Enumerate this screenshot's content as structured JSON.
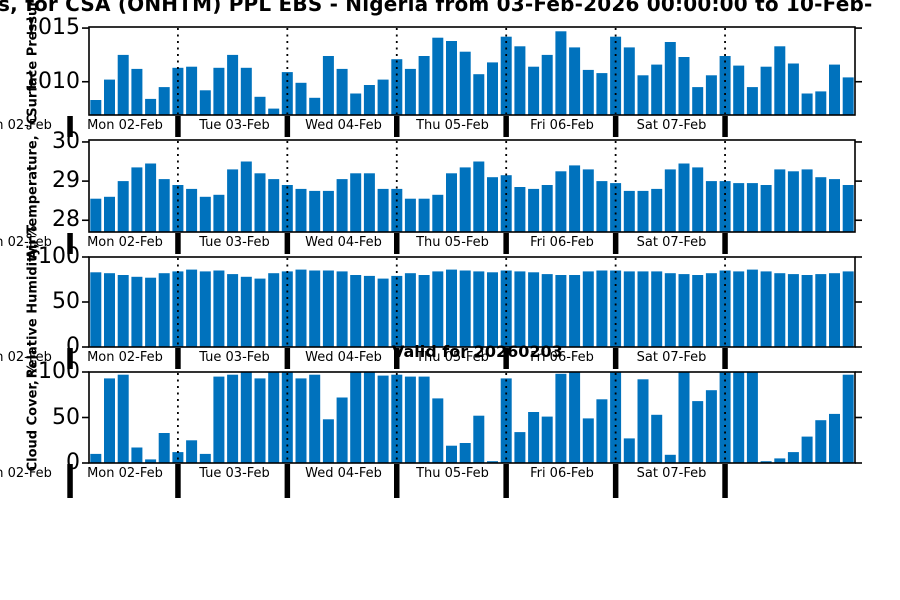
{
  "title": "s, for CSA (ONHTM) PPL EBS  - Nigeria from 03-Feb-2026 00:00:00 to 10-Feb-",
  "annotation": "Valid for 20260203",
  "colors": {
    "bar": "#0072BD",
    "axis": "#000000"
  },
  "x_axis": {
    "day_labels": [
      "Mon 02-Feb",
      "Tue 03-Feb",
      "Wed 04-Feb",
      "Thu 05-Feb",
      "Fri 06-Feb",
      "Sat 07-Feb"
    ],
    "clipped_left_label": "Mon 02-Feb",
    "bars_per_day": [
      6,
      8,
      8,
      8,
      8,
      8,
      10
    ]
  },
  "chart_data": [
    {
      "type": "bar",
      "ylabel": "Surface Pressure, mb",
      "yticks": [
        1010,
        1015
      ],
      "ylim": [
        1006.9,
        1015.1
      ],
      "values": [
        1008.3,
        1010.2,
        1012.5,
        1011.2,
        1008.4,
        1009.5,
        1011.3,
        1011.4,
        1009.2,
        1011.3,
        1012.5,
        1011.3,
        1008.6,
        1007.5,
        1010.9,
        1009.9,
        1008.5,
        1012.4,
        1011.2,
        1008.9,
        1009.7,
        1010.2,
        1012.1,
        1011.2,
        1012.4,
        1014.1,
        1013.8,
        1012.8,
        1010.7,
        1011.8,
        1014.2,
        1013.3,
        1011.4,
        1012.5,
        1014.7,
        1013.2,
        1011.1,
        1010.8,
        1014.2,
        1013.2,
        1010.6,
        1011.6,
        1013.7,
        1012.3,
        1009.5,
        1010.6,
        1012.4,
        1011.5,
        1009.5,
        1011.4,
        1013.3,
        1011.7,
        1008.9,
        1009.1,
        1011.6,
        1010.4
      ]
    },
    {
      "type": "bar",
      "ylabel": "Air Temperature, °C",
      "yticks": [
        28,
        29,
        30
      ],
      "ylim": [
        27.7,
        30.05
      ],
      "values": [
        28.55,
        28.6,
        29.0,
        29.35,
        29.45,
        29.05,
        28.9,
        28.8,
        28.6,
        28.65,
        29.3,
        29.5,
        29.2,
        29.05,
        28.9,
        28.8,
        28.75,
        28.75,
        29.05,
        29.2,
        29.2,
        28.8,
        28.8,
        28.55,
        28.55,
        28.65,
        29.2,
        29.35,
        29.5,
        29.1,
        29.15,
        28.85,
        28.8,
        28.9,
        29.25,
        29.4,
        29.3,
        29.0,
        28.95,
        28.75,
        28.75,
        28.8,
        29.3,
        29.45,
        29.35,
        29.0,
        29.0,
        28.95,
        28.95,
        28.9,
        29.3,
        29.25,
        29.3,
        29.1,
        29.05,
        28.9
      ]
    },
    {
      "type": "bar",
      "ylabel": "Relative Humidity, %",
      "yticks": [
        0,
        50,
        100
      ],
      "ylim": [
        0,
        100
      ],
      "values": [
        83,
        82,
        80,
        78,
        77,
        82,
        84,
        86,
        84,
        85,
        81,
        78,
        76,
        82,
        84,
        86,
        85,
        85,
        84,
        80,
        79,
        76,
        79,
        82,
        80,
        84,
        86,
        85,
        84,
        83,
        85,
        84,
        83,
        81,
        80,
        80,
        84,
        85,
        85,
        84,
        84,
        84,
        82,
        81,
        80,
        82,
        85,
        84,
        86,
        84,
        82,
        81,
        80,
        81,
        82,
        84
      ]
    },
    {
      "type": "bar",
      "ylabel": "Cloud Cover, %",
      "yticks": [
        0,
        50,
        100
      ],
      "ylim": [
        0,
        100
      ],
      "values": [
        10,
        93,
        97,
        17,
        4,
        33,
        12,
        25,
        10,
        95,
        97,
        100,
        93,
        100,
        100,
        93,
        97,
        48,
        72,
        100,
        100,
        96,
        97,
        95,
        95,
        71,
        19,
        22,
        52,
        2,
        93,
        34,
        56,
        51,
        98,
        100,
        49,
        70,
        100,
        27,
        92,
        53,
        9,
        100,
        68,
        80,
        100,
        100,
        100,
        2,
        5,
        12,
        29,
        47,
        54,
        97
      ]
    }
  ]
}
